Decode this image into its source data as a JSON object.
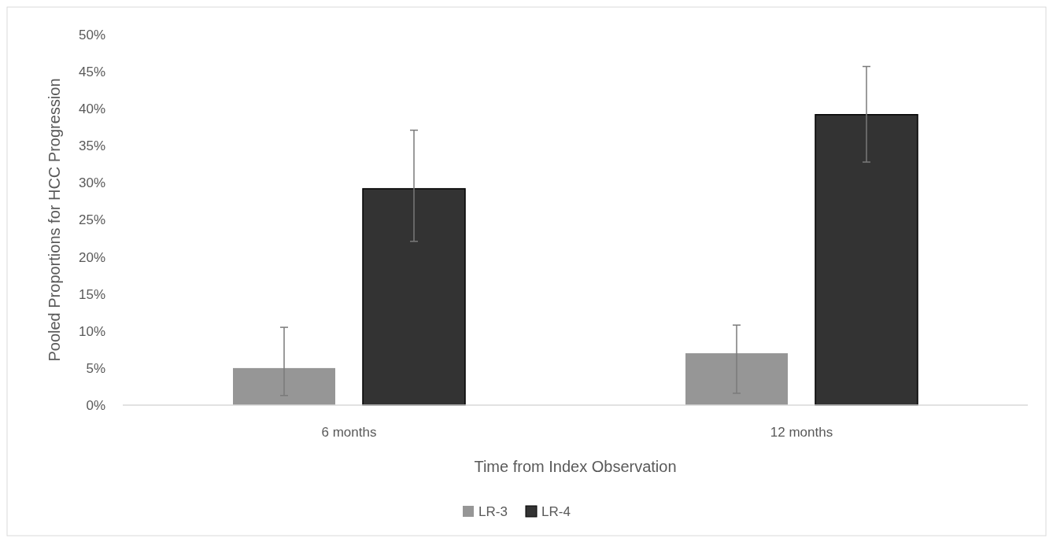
{
  "chart_data": {
    "type": "bar",
    "xlabel": "Time from Index Observation",
    "ylabel": "Pooled Proportions for HCC Progression",
    "categories": [
      "6 months",
      "12 months"
    ],
    "series": [
      {
        "name": "LR-3",
        "color": "#969696",
        "values": [
          5.0,
          7.0
        ],
        "errors": [
          [
            1.3,
            10.5
          ],
          [
            1.6,
            10.8
          ]
        ]
      },
      {
        "name": "LR-4",
        "color": "#333333",
        "values": [
          29.2,
          39.2
        ],
        "errors": [
          [
            22.1,
            37.1
          ],
          [
            32.8,
            45.7
          ]
        ]
      }
    ],
    "ylim": [
      0,
      50
    ],
    "yticks": [
      {
        "value": 0,
        "label": "0%"
      },
      {
        "value": 5,
        "label": "5%"
      },
      {
        "value": 10,
        "label": "10%"
      },
      {
        "value": 15,
        "label": "15%"
      },
      {
        "value": 20,
        "label": "20%"
      },
      {
        "value": 25,
        "label": "25%"
      },
      {
        "value": 30,
        "label": "30%"
      },
      {
        "value": 35,
        "label": "35%"
      },
      {
        "value": 40,
        "label": "40%"
      },
      {
        "value": 45,
        "label": "45%"
      },
      {
        "value": 50,
        "label": "50%"
      }
    ],
    "legend": "bottom",
    "grid": false
  }
}
